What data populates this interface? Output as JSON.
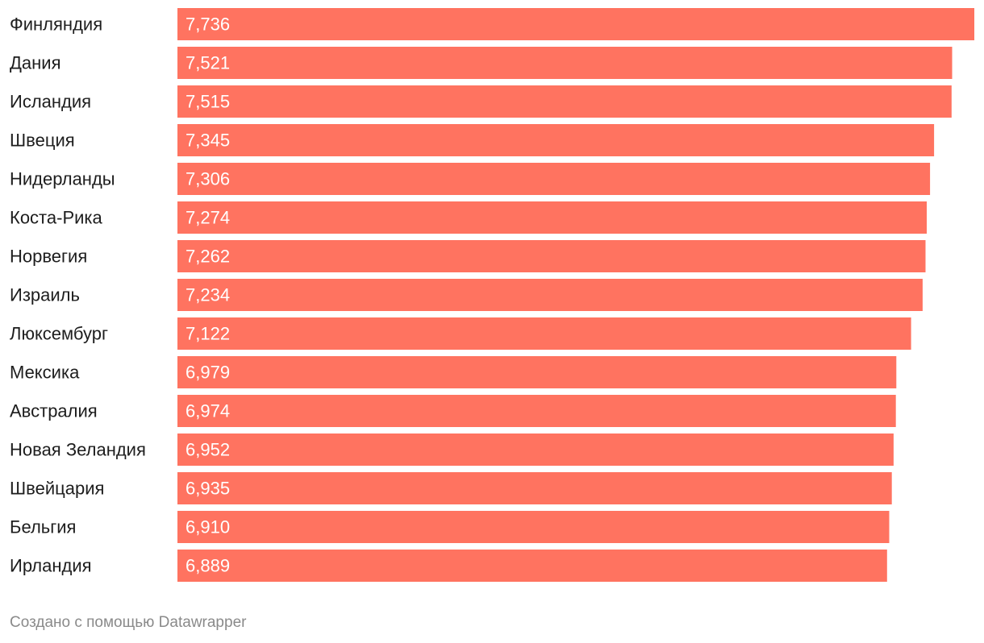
{
  "chart_data": {
    "type": "bar",
    "orientation": "horizontal",
    "categories": [
      "Финляндия",
      "Дания",
      "Исландия",
      "Швеция",
      "Нидерланды",
      "Коста-Рика",
      "Норвегия",
      "Израиль",
      "Люксембург",
      "Мексика",
      "Австралия",
      "Новая Зеландия",
      "Швейцария",
      "Бельгия",
      "Ирландия"
    ],
    "values": [
      7.736,
      7.521,
      7.515,
      7.345,
      7.306,
      7.274,
      7.262,
      7.234,
      7.122,
      6.979,
      6.974,
      6.952,
      6.935,
      6.91,
      6.889
    ],
    "value_labels": [
      "7,736",
      "7,521",
      "7,515",
      "7,345",
      "7,306",
      "7,274",
      "7,262",
      "7,234",
      "7,122",
      "6,979",
      "6,974",
      "6,952",
      "6,935",
      "6,910",
      "6,889"
    ],
    "bar_color": "#ff7360",
    "label_color": "#ffffff",
    "title": "",
    "xlabel": "",
    "ylabel": ""
  },
  "footer": {
    "credit": "Создано с помощью Datawrapper"
  }
}
